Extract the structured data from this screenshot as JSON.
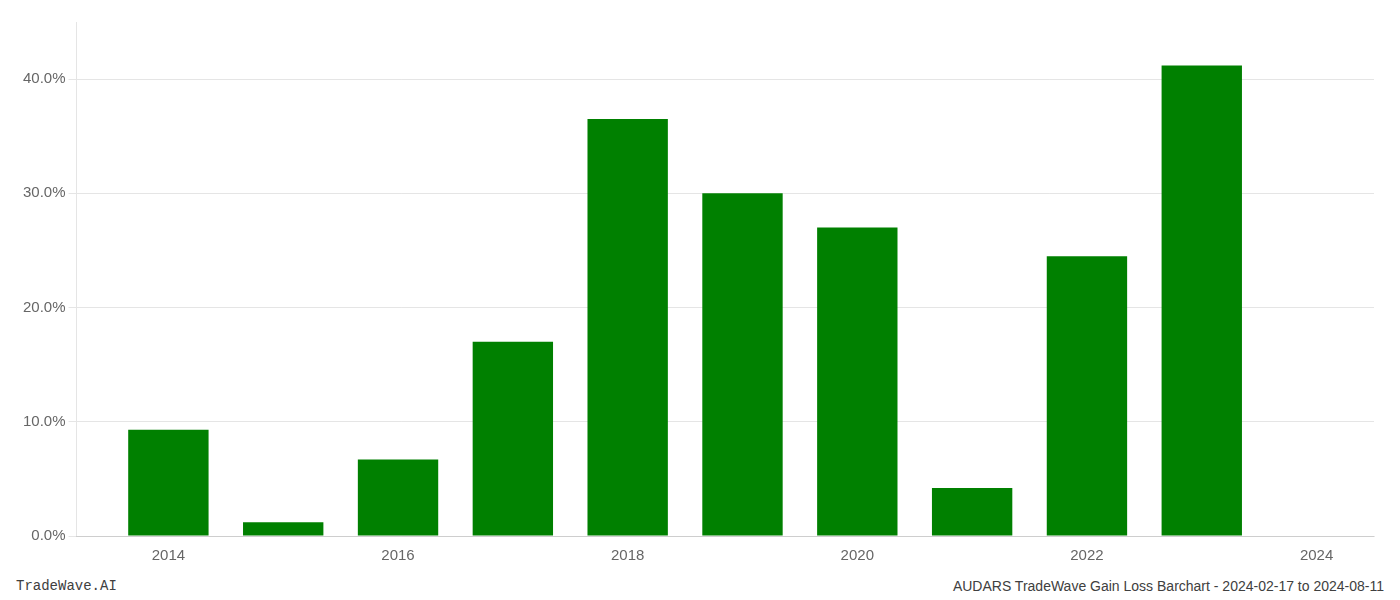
{
  "chart_data": {
    "type": "bar",
    "x": [
      2014,
      2015,
      2016,
      2017,
      2018,
      2019,
      2020,
      2021,
      2022,
      2023
    ],
    "values": [
      0.093,
      0.012,
      0.067,
      0.17,
      0.365,
      0.3,
      0.27,
      0.042,
      0.245,
      0.412
    ],
    "color": "#008000",
    "xlim": [
      2013.2,
      2024.5
    ],
    "xticks": [
      2014,
      2016,
      2018,
      2020,
      2022,
      2024
    ],
    "ylim": [
      0,
      0.45
    ],
    "yticks": [
      {
        "value": 0.0,
        "label": "0.0%"
      },
      {
        "value": 0.1,
        "label": "10.0%"
      },
      {
        "value": 0.2,
        "label": "20.0%"
      },
      {
        "value": 0.3,
        "label": "30.0%"
      },
      {
        "value": 0.4,
        "label": "40.0%"
      }
    ],
    "grid": true,
    "annotations": [
      "TradeWave.AI",
      "AUDARS TradeWave Gain Loss Barchart - 2024-02-17 to 2024-08-11"
    ]
  }
}
